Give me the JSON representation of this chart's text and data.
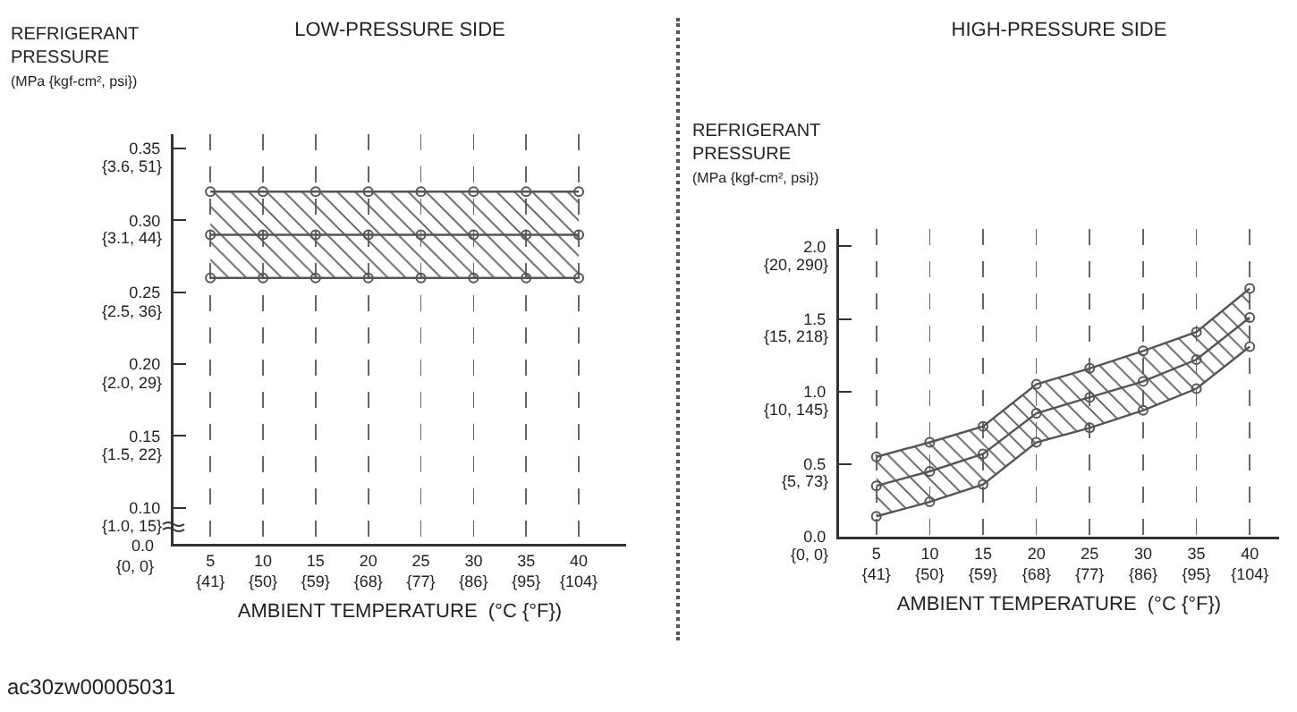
{
  "chart_data": [
    {
      "type": "line",
      "title": "LOW-PRESSURE SIDE",
      "xlabel": "AMBIENT TEMPERATURE  (°C {°F})",
      "ylabel": "REFRIGERANT\nPRESSURE\n(MPa {kgf-cm², psi})",
      "categories": [
        "5\n{41}",
        "10\n{50}",
        "15\n{59}",
        "20\n{68}",
        "25\n{77}",
        "30\n{86}",
        "35\n{95}",
        "40\n{104}"
      ],
      "series": [
        {
          "color": "#555555",
          "values": [
            0.32,
            0.32,
            0.32,
            0.32,
            0.32,
            0.32,
            0.32,
            0.32
          ]
        },
        {
          "color": "#555555",
          "values": [
            0.29,
            0.29,
            0.29,
            0.29,
            0.29,
            0.29,
            0.29,
            0.29
          ],
          "lower": [
            0.26,
            0.26,
            0.26,
            0.26,
            0.26,
            0.26,
            0.26,
            0.26
          ],
          "upper": [
            0.32,
            0.32,
            0.32,
            0.32,
            0.32,
            0.32,
            0.32,
            0.32
          ]
        },
        {
          "color": "#555555",
          "values": [
            0.26,
            0.26,
            0.26,
            0.26,
            0.26,
            0.26,
            0.26,
            0.26
          ]
        }
      ],
      "ylim": [
        0.075,
        0.36
      ],
      "yticks": [
        {
          "value": 0.1,
          "label": "0.10"
        },
        0.15,
        {
          "value": 0.2,
          "label": "0.20"
        },
        0.25,
        {
          "value": 0.3,
          "label": "0.30"
        },
        0.35
      ],
      "grid": "x",
      "marker": "circle",
      "line_style": "solid",
      "annotations": [
        "0.0\n{0, 0}",
        "ac30zw00005031",
        "{1.0, 15}",
        "{1.5, 22}",
        "{2.0, 29}",
        "{2.5, 36}",
        "{3.1, 44}",
        "{3.6, 51}"
      ]
    },
    {
      "type": "line",
      "title": "HIGH-PRESSURE SIDE",
      "xlabel": "AMBIENT TEMPERATURE  (°C {°F})",
      "ylabel": "REFRIGERANT\nPRESSURE\n(MPa {kgf-cm², psi})",
      "categories": [
        "5\n{41}",
        "10\n{50}",
        "15\n{59}",
        "20\n{68}",
        "25\n{77}",
        "30\n{86}",
        "35\n{95}",
        "40\n{104}"
      ],
      "series": [
        {
          "color": "#555555",
          "values": [
            0.55,
            0.65,
            0.76,
            1.05,
            1.16,
            1.28,
            1.41,
            1.71
          ]
        },
        {
          "color": "#555555",
          "values": [
            0.35,
            0.45,
            0.57,
            0.85,
            0.96,
            1.07,
            1.22,
            1.51
          ],
          "lower": [
            0.14,
            0.24,
            0.36,
            0.65,
            0.75,
            0.87,
            1.02,
            1.31
          ],
          "upper": [
            0.55,
            0.65,
            0.76,
            1.05,
            1.16,
            1.28,
            1.41,
            1.71
          ]
        },
        {
          "color": "#555555",
          "values": [
            0.14,
            0.24,
            0.36,
            0.65,
            0.75,
            0.87,
            1.02,
            1.31
          ]
        }
      ],
      "ylim": [
        0,
        2.12
      ],
      "yticks": [
        {
          "value": 0,
          "label": "0.0"
        },
        0.5,
        {
          "value": 1.0,
          "label": "1.0"
        },
        1.5,
        {
          "value": 2.0,
          "label": "2.0"
        }
      ],
      "grid": "x",
      "marker": "circle",
      "line_style": "solid",
      "annotations": [
        "{0, 0}",
        "{5, 73}",
        "{10, 145}",
        "{15, 218}",
        "{20, 290}"
      ]
    }
  ]
}
